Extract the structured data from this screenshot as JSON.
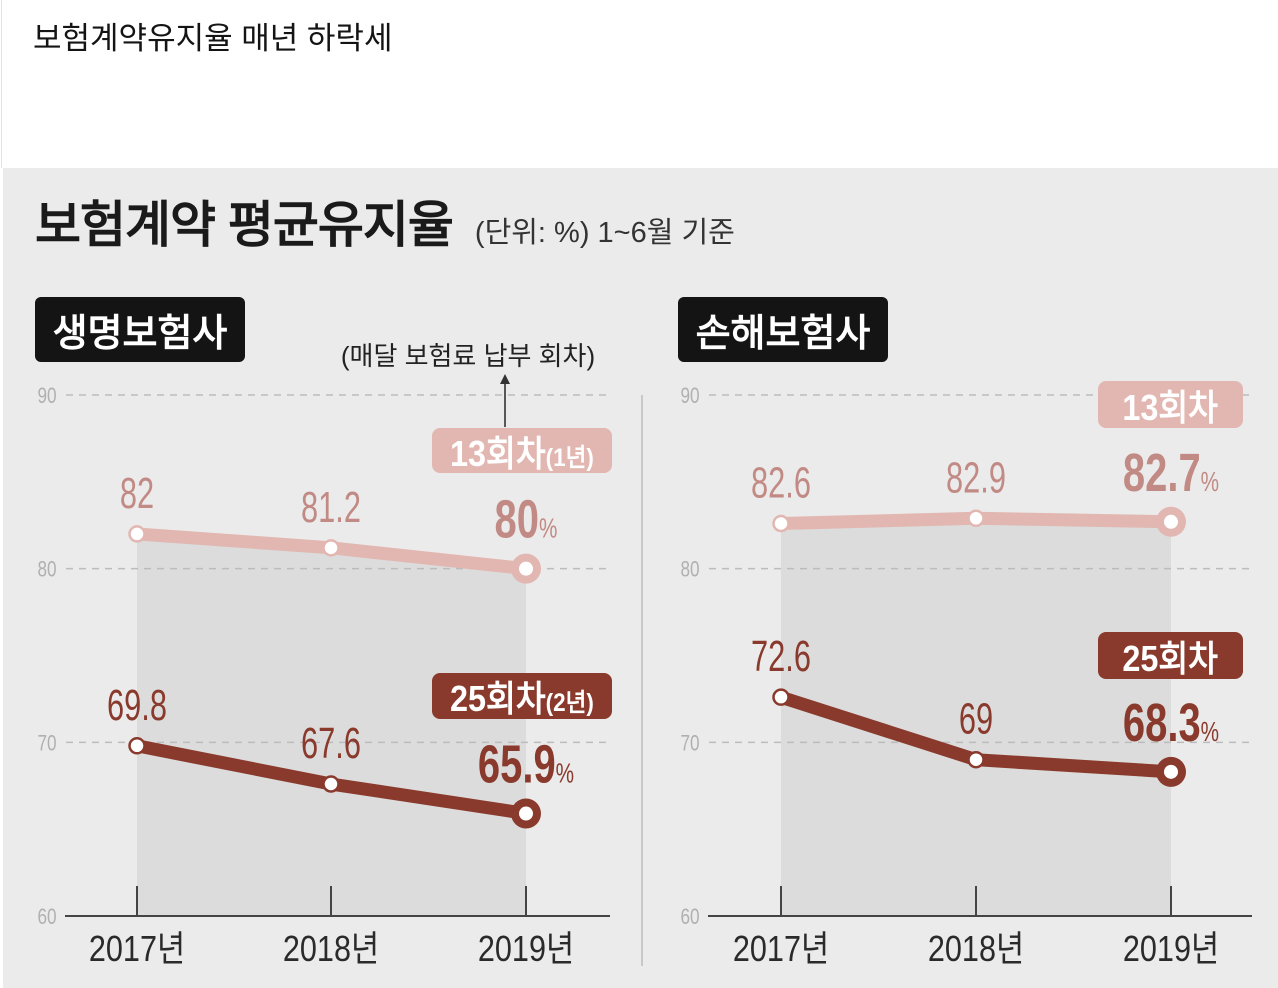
{
  "headline": "보험계약유지율 매년 하락세",
  "panel": {
    "title": "보험계약 평균유지율",
    "unit_note": "(단위: %) 1~6월 기준"
  },
  "colors": {
    "page_bg": "#ffffff",
    "panel_bg": "#ebebeb",
    "shade": "#dcdcdc",
    "grid": "#bcbcbc",
    "axis": "#444444",
    "divider": "#c8c8c8",
    "tick_label": "#b0b0b0",
    "category_label": "#2a2a2a",
    "title_box": "#141414",
    "title_box_text": "#ffffff",
    "annotation_arrow": "#333333"
  },
  "chart_data": [
    {
      "type": "line",
      "title": "생명보험사",
      "annotation": "(매달 보험료 납부 회차)",
      "categories": [
        "2017년",
        "2018년",
        "2019년"
      ],
      "ylim": [
        60,
        90
      ],
      "yticks": [
        90,
        80,
        70,
        60
      ],
      "grid": true,
      "unit": "%",
      "series": [
        {
          "name": "13회차",
          "name_note": "(1년)",
          "values": [
            82,
            81.2,
            80
          ],
          "color": "#e2b7b1",
          "text_color": "#c28a84"
        },
        {
          "name": "25회차",
          "name_note": "(2년)",
          "values": [
            69.8,
            67.6,
            65.9
          ],
          "color": "#8a3a2c",
          "text_color": "#8a3a2c"
        }
      ]
    },
    {
      "type": "line",
      "title": "손해보험사",
      "categories": [
        "2017년",
        "2018년",
        "2019년"
      ],
      "ylim": [
        60,
        90
      ],
      "yticks": [
        90,
        80,
        70,
        60
      ],
      "grid": true,
      "unit": "%",
      "series": [
        {
          "name": "13회차",
          "values": [
            82.6,
            82.9,
            82.7
          ],
          "color": "#e2b7b1",
          "text_color": "#c28a84"
        },
        {
          "name": "25회차",
          "values": [
            72.6,
            69,
            68.3
          ],
          "color": "#8a3a2c",
          "text_color": "#8a3a2c"
        }
      ]
    }
  ]
}
